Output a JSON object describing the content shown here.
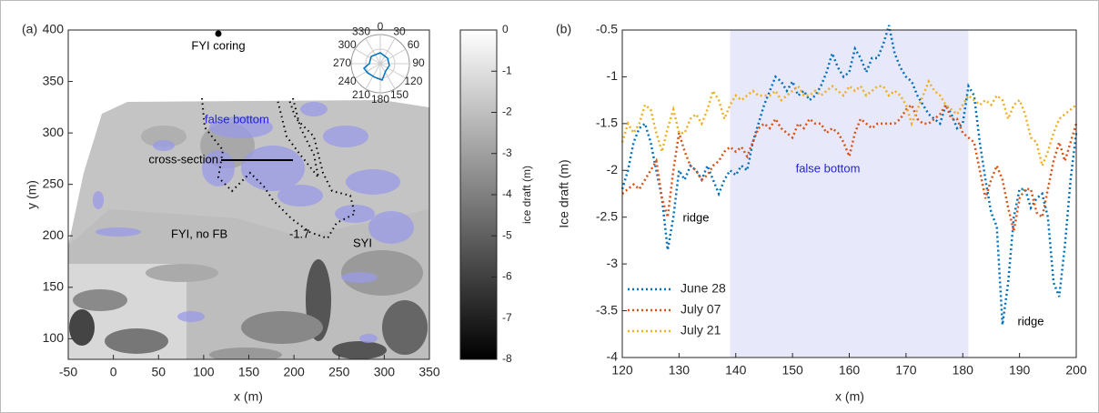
{
  "chart_data": [
    {
      "type": "image",
      "panel_label": "(a)",
      "xlabel": "x (m)",
      "ylabel": "y (m)",
      "xlim": [
        -50,
        350
      ],
      "xticks": [
        -50,
        0,
        50,
        100,
        150,
        200,
        250,
        300,
        350
      ],
      "ylim": [
        80,
        400
      ],
      "yticks": [
        100,
        150,
        200,
        250,
        300,
        350,
        400
      ],
      "colormap": "gray",
      "clim": [
        -8,
        0
      ],
      "cticks": [
        -8,
        -7,
        -6,
        -5,
        -4,
        -3,
        -2,
        -1,
        0
      ],
      "clabel": "ice draft (m)",
      "inset_angles": [
        0,
        30,
        60,
        90,
        120,
        150,
        180,
        210,
        240,
        270,
        300,
        330
      ],
      "annotations": [
        "FYI coring",
        "false bottom",
        "cross-section",
        "FYI, no FB",
        "-1.7",
        "SYI"
      ]
    },
    {
      "type": "line",
      "panel_label": "(b)",
      "xlabel": "x (m)",
      "ylabel": "Ice draft (m)",
      "xlim": [
        120,
        200
      ],
      "xticks": [
        120,
        130,
        140,
        150,
        160,
        170,
        180,
        190,
        200
      ],
      "ylim": [
        -4,
        -0.5
      ],
      "yticks": [
        -4,
        -3.5,
        -3,
        -2.5,
        -2,
        -1.5,
        -1,
        -0.5
      ],
      "shade": [
        139,
        181
      ],
      "shade_color": "#e8e8fb",
      "legend": "lower left",
      "annotations": [
        "false bottom",
        "ridge",
        "ridge"
      ],
      "x": [
        120,
        121,
        122,
        123,
        124,
        125,
        126,
        127,
        128,
        129,
        130,
        131,
        132,
        133,
        134,
        135,
        136,
        137,
        138,
        139,
        140,
        141,
        142,
        143,
        144,
        145,
        146,
        147,
        148,
        149,
        150,
        151,
        152,
        153,
        154,
        155,
        156,
        157,
        158,
        159,
        160,
        161,
        162,
        163,
        164,
        165,
        166,
        167,
        168,
        169,
        170,
        171,
        172,
        173,
        174,
        175,
        176,
        177,
        178,
        179,
        180,
        181,
        182,
        183,
        184,
        185,
        186,
        187,
        188,
        189,
        190,
        191,
        192,
        193,
        194,
        195,
        196,
        197,
        198,
        199,
        200
      ],
      "series": [
        {
          "name": "June 28",
          "color": "#0072bd",
          "values": [
            -2.2,
            -2.0,
            -1.7,
            -1.55,
            -1.5,
            -1.7,
            -2.0,
            -2.3,
            -2.85,
            -2.5,
            -2.0,
            -2.1,
            -1.95,
            -2.0,
            -2.1,
            -1.95,
            -2.1,
            -2.25,
            -2.1,
            -2.0,
            -2.05,
            -1.95,
            -2.0,
            -1.7,
            -1.5,
            -1.3,
            -1.15,
            -1.0,
            -1.05,
            -1.15,
            -1.05,
            -1.2,
            -1.15,
            -1.25,
            -1.2,
            -1.1,
            -0.95,
            -0.75,
            -0.9,
            -1.0,
            -0.95,
            -0.7,
            -0.8,
            -0.95,
            -0.8,
            -0.8,
            -0.65,
            -0.45,
            -0.75,
            -0.9,
            -1.0,
            -1.05,
            -1.2,
            -1.3,
            -1.4,
            -1.45,
            -1.5,
            -1.3,
            -1.4,
            -1.55,
            -1.5,
            -1.1,
            -1.2,
            -1.7,
            -2.1,
            -2.45,
            -2.6,
            -3.65,
            -3.2,
            -2.5,
            -2.2,
            -2.2,
            -2.4,
            -2.3,
            -2.25,
            -2.5,
            -3.2,
            -3.35,
            -2.8,
            -2.1,
            -1.6
          ]
        },
        {
          "name": "July 07",
          "color": "#d95319",
          "values": [
            -2.25,
            -2.2,
            -2.15,
            -2.2,
            -2.1,
            -2.0,
            -1.9,
            -2.3,
            -2.5,
            -2.0,
            -1.6,
            -1.8,
            -1.95,
            -2.0,
            -2.1,
            -2.05,
            -1.95,
            -1.9,
            -1.8,
            -1.75,
            -1.8,
            -1.75,
            -1.85,
            -1.7,
            -1.55,
            -1.5,
            -1.55,
            -1.45,
            -1.55,
            -1.6,
            -1.65,
            -1.5,
            -1.55,
            -1.45,
            -1.5,
            -1.5,
            -1.6,
            -1.55,
            -1.6,
            -1.7,
            -1.85,
            -1.6,
            -1.45,
            -1.5,
            -1.55,
            -1.5,
            -1.5,
            -1.5,
            -1.5,
            -1.45,
            -1.35,
            -1.3,
            -1.45,
            -1.5,
            -1.5,
            -1.45,
            -1.4,
            -1.3,
            -1.45,
            -1.45,
            -1.6,
            -1.65,
            -1.7,
            -2.0,
            -2.3,
            -2.1,
            -1.95,
            -2.1,
            -2.4,
            -2.65,
            -2.3,
            -2.2,
            -2.2,
            -2.45,
            -2.5,
            -2.2,
            -1.9,
            -1.7,
            -1.9,
            -1.7,
            -1.5
          ]
        },
        {
          "name": "July 21",
          "color": "#edb120",
          "values": [
            -1.7,
            -1.5,
            -1.6,
            -1.5,
            -1.3,
            -1.35,
            -1.6,
            -1.8,
            -1.55,
            -1.35,
            -1.6,
            -1.6,
            -1.45,
            -1.4,
            -1.5,
            -1.35,
            -1.15,
            -1.25,
            -1.45,
            -1.3,
            -1.2,
            -1.25,
            -1.2,
            -1.15,
            -1.2,
            -1.2,
            -1.2,
            -1.15,
            -1.25,
            -1.2,
            -1.15,
            -1.1,
            -1.2,
            -1.2,
            -1.15,
            -1.2,
            -1.15,
            -1.1,
            -1.15,
            -1.2,
            -1.1,
            -1.15,
            -1.1,
            -1.2,
            -1.15,
            -1.1,
            -1.1,
            -1.2,
            -1.15,
            -1.2,
            -1.3,
            -1.5,
            -1.35,
            -1.2,
            -1.05,
            -1.15,
            -1.2,
            -1.3,
            -1.35,
            -1.4,
            -1.3,
            -1.2,
            -1.25,
            -1.3,
            -1.25,
            -1.3,
            -1.2,
            -1.25,
            -1.45,
            -1.3,
            -1.25,
            -1.4,
            -1.65,
            -1.7,
            -1.95,
            -1.8,
            -1.6,
            -1.45,
            -1.4,
            -1.35,
            -1.3
          ]
        }
      ]
    }
  ]
}
